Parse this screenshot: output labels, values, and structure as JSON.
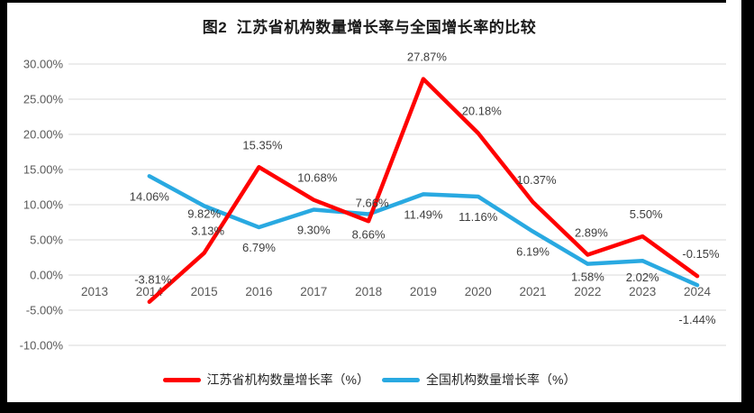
{
  "title": "图2  江苏省机构数量增长率与全国增长率的比较",
  "chart_data": {
    "type": "line",
    "categories": [
      "2013",
      "2014",
      "2015",
      "2016",
      "2017",
      "2018",
      "2019",
      "2020",
      "2021",
      "2022",
      "2023",
      "2024"
    ],
    "series": [
      {
        "name": "江苏省机构数量增长率（%）",
        "color": "#FF0000",
        "values": [
          null,
          -3.81,
          3.13,
          15.35,
          10.68,
          7.66,
          27.87,
          20.18,
          10.37,
          2.89,
          5.5,
          -0.15
        ],
        "labels": [
          "",
          "-3.81%",
          "3.13%",
          "15.35%",
          "10.68%",
          "7.66%",
          "27.87%",
          "20.18%",
          "10.37%",
          "2.89%",
          "5.50%",
          "-0.15%"
        ]
      },
      {
        "name": "全国机构数量增长率（%）",
        "color": "#29A9E1",
        "values": [
          null,
          14.06,
          9.82,
          6.79,
          9.3,
          8.66,
          11.49,
          11.16,
          6.19,
          1.58,
          2.02,
          -1.44
        ],
        "labels": [
          "",
          "14.06%",
          "9.82%",
          "6.79%",
          "9.30%",
          "8.66%",
          "11.49%",
          "11.16%",
          "6.19%",
          "1.58%",
          "2.02%",
          "-1.44%"
        ]
      }
    ],
    "ylim": [
      -10,
      30
    ],
    "yticks": [
      30,
      25,
      20,
      15,
      10,
      5,
      0,
      -5,
      -10
    ],
    "ytick_labels": [
      "30.00%",
      "25.00%",
      "20.00%",
      "15.00%",
      "10.00%",
      "5.00%",
      "0.00%",
      "-5.00%",
      "-10.00%"
    ],
    "xlabel": "",
    "ylabel": "",
    "grid": true,
    "legend_position": "bottom",
    "colors": {
      "gridline": "#D8D8D8",
      "axis_text": "#595959",
      "data_label_text": "#3d3d3d",
      "title_text": "#1a1a1a",
      "background": "#ffffff",
      "border": "#000000"
    }
  }
}
